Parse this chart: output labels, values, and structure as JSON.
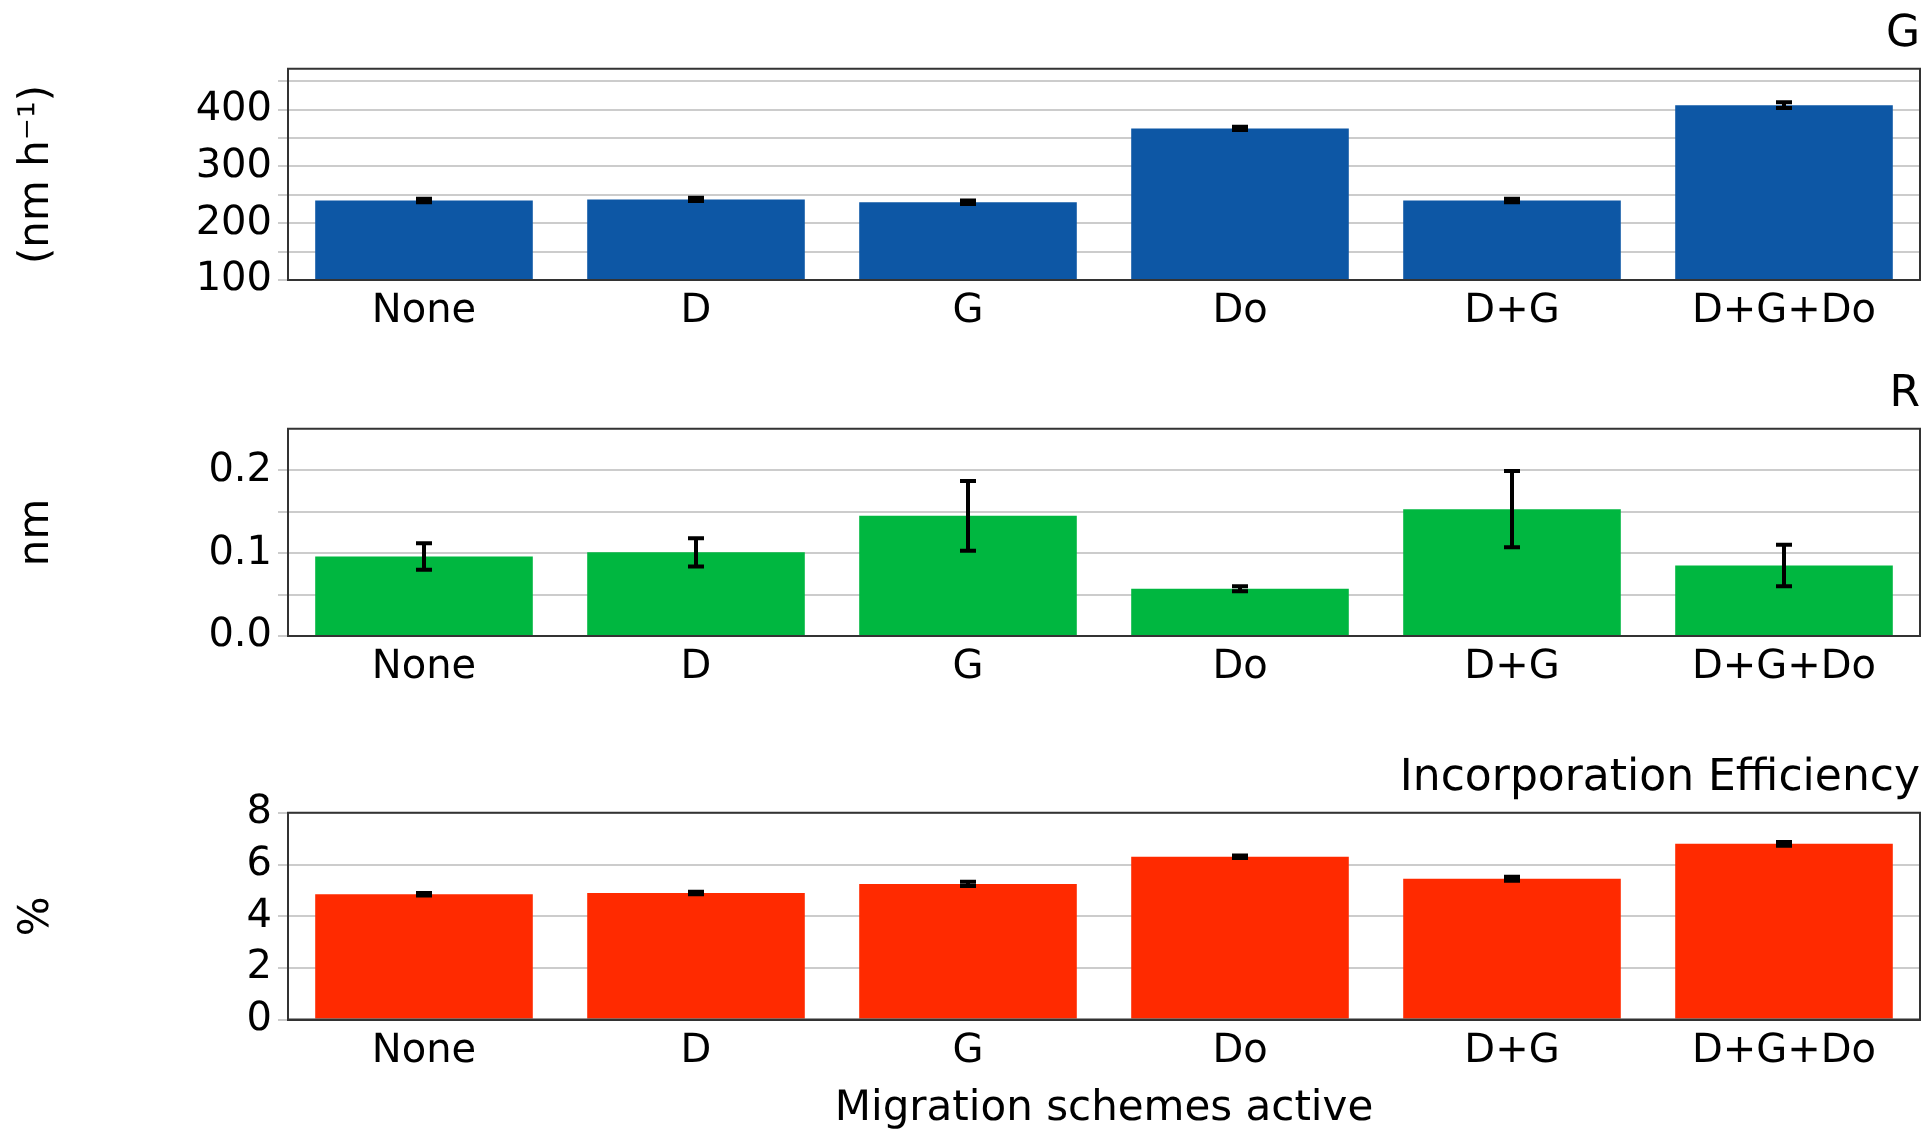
{
  "chart_data": [
    {
      "type": "bar",
      "title": "G",
      "ylabel": "(nm h⁻¹)",
      "categories": [
        "None",
        "D",
        "G",
        "Do",
        "D+G",
        "D+G+Do"
      ],
      "series": [
        {
          "color": "#0d57a5",
          "values": [
            240,
            242,
            237,
            367,
            240,
            408
          ],
          "errors": [
            3,
            3,
            3,
            3,
            3,
            5
          ]
        }
      ],
      "ylim": [
        100,
        472
      ],
      "yticks": [
        100,
        {
          "value": 150,
          "label": null
        },
        200,
        {
          "value": 250,
          "label": null
        },
        300,
        {
          "value": 350,
          "label": null
        },
        400,
        {
          "value": 450,
          "label": null
        }
      ],
      "grid": "y",
      "legend": false
    },
    {
      "type": "bar",
      "title": "R",
      "ylabel": "nm",
      "categories": [
        "None",
        "D",
        "G",
        "Do",
        "D+G",
        "D+G+Do"
      ],
      "series": [
        {
          "color": "#00b740",
          "values": [
            0.096,
            0.101,
            0.145,
            0.057,
            0.153,
            0.085
          ],
          "errors": [
            0.016,
            0.017,
            0.042,
            0.003,
            0.046,
            0.025
          ]
        }
      ],
      "ylim": [
        0,
        0.25
      ],
      "yticks": [
        {
          "value": 0,
          "label": "0.0"
        },
        {
          "value": 0.05,
          "label": null
        },
        {
          "value": 0.1,
          "label": "0.1"
        },
        {
          "value": 0.15,
          "label": null
        },
        {
          "value": 0.2,
          "label": "0.2"
        }
      ],
      "grid": "y",
      "legend": false
    },
    {
      "type": "bar",
      "title": "Incorporation Efficiency",
      "xlabel": "Migration schemes active",
      "ylabel": "%",
      "categories": [
        "None",
        "D",
        "G",
        "Do",
        "D+G",
        "D+G+Do"
      ],
      "series": [
        {
          "color": "#ff2a00",
          "values": [
            4.85,
            4.9,
            5.25,
            6.3,
            5.45,
            6.8
          ],
          "errors": [
            0.05,
            0.05,
            0.08,
            0.05,
            0.08,
            0.07
          ]
        }
      ],
      "ylim": [
        0,
        8
      ],
      "yticks": [
        0,
        2,
        4,
        6,
        8
      ],
      "grid": "y",
      "legend": false
    }
  ]
}
